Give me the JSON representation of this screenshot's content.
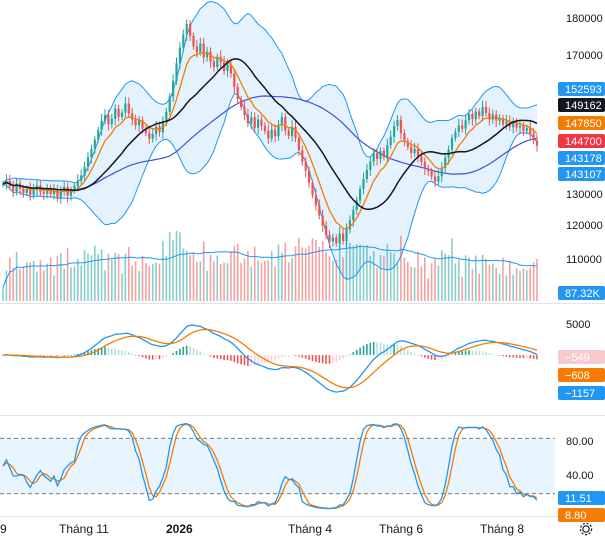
{
  "chart_data": [
    {
      "type": "candlestick",
      "pane": "price",
      "indicators": [
        "Bollinger Bands",
        "EMA",
        "SMA"
      ],
      "y_ticks": [
        "180000",
        "170000",
        "130000",
        "120000",
        "110000"
      ],
      "ylim": [
        103000,
        183000
      ],
      "price_labels": [
        {
          "text": "152593",
          "value": 152593,
          "color": "#2196f3"
        },
        {
          "text": "149162",
          "value": 149162,
          "color": "#131722"
        },
        {
          "text": "147850",
          "value": 147850,
          "color": "#f57c00"
        },
        {
          "text": "144700",
          "value": 144700,
          "color": "#f23645"
        },
        {
          "text": "143178",
          "value": 143178,
          "color": "#2196f3"
        },
        {
          "text": "143107",
          "value": 143107,
          "color": "#2196f3"
        }
      ],
      "closes": [
        134200,
        135100,
        133600,
        132300,
        134400,
        133000,
        131800,
        132900,
        131200,
        132600,
        133800,
        132100,
        131600,
        133200,
        131500,
        132400,
        130400,
        132200,
        133400,
        131000,
        132500,
        133700,
        135100,
        136600,
        138900,
        141600,
        143800,
        146400,
        149000,
        151600,
        153100,
        150600,
        152100,
        154900,
        152600,
        153800,
        156300,
        153600,
        151900,
        150300,
        151700,
        149400,
        148200,
        146600,
        147900,
        150000,
        148400,
        151500,
        154000,
        158200,
        162500,
        167300,
        171600,
        175200,
        178100,
        174800,
        171900,
        170400,
        172700,
        168900,
        170500,
        167800,
        166300,
        169100,
        167600,
        165200,
        167000,
        164500,
        160800,
        157500,
        155300,
        153200,
        150900,
        152500,
        149600,
        151900,
        150200,
        148800,
        146700,
        149100,
        147300,
        150500,
        152600,
        148900,
        147400,
        149900,
        146800,
        143500,
        140400,
        137900,
        134600,
        131200,
        128400,
        125600,
        122800,
        120300,
        118500,
        119600,
        117900,
        120700,
        118600,
        121900,
        124300,
        127100,
        129700,
        132900,
        135600,
        138100,
        140400,
        142700,
        141100,
        143300,
        141600,
        144900,
        147200,
        150100,
        151800,
        148200,
        145900,
        144400,
        142700,
        143900,
        141800,
        140300,
        138500,
        137800,
        136300,
        134900,
        136400,
        138700,
        141400,
        143600,
        146800,
        148600,
        150300,
        149400,
        151700,
        153400,
        152000,
        154100,
        152900,
        155300,
        153700,
        151900,
        153300,
        151600,
        152300,
        150600,
        151400,
        149800,
        150900,
        149700,
        150200,
        148800,
        149600,
        147900,
        146200,
        144700
      ],
      "volume": {
        "label": "87.32K",
        "last": 87320
      }
    },
    {
      "type": "macd",
      "pane": "macd",
      "y_ticks": [
        "5000"
      ],
      "ylim": [
        -14000,
        12000
      ],
      "value_labels": [
        {
          "text": "−549",
          "value": -549,
          "color": "#f23645"
        },
        {
          "text": "−608",
          "value": -608,
          "color": "#f57c00"
        },
        {
          "text": "−1157",
          "value": -1157,
          "color": "#2196f3"
        }
      ]
    },
    {
      "type": "stochastic",
      "pane": "stoch",
      "y_ticks": [
        "80.00",
        "40.00"
      ],
      "ylim": [
        0,
        100
      ],
      "band": [
        20,
        80
      ],
      "value_labels": [
        {
          "text": "11.51",
          "value": 11.51,
          "color": "#2196f3"
        },
        {
          "text": "8.80",
          "value": 8.8,
          "color": "#f57c00"
        }
      ]
    }
  ],
  "time_axis": {
    "labels": [
      "9",
      "Tháng 11",
      "2026",
      "Tháng 4",
      "Tháng 6",
      "Tháng 8"
    ]
  },
  "icons": {
    "settings": "gear-icon"
  }
}
